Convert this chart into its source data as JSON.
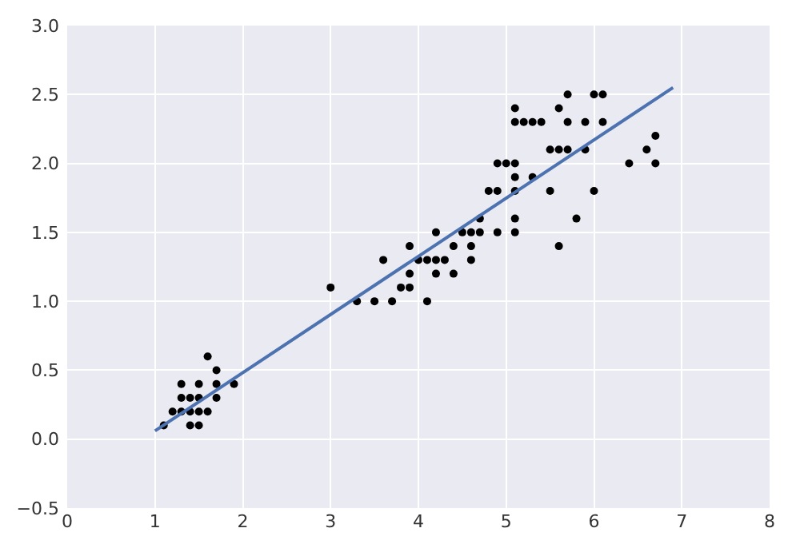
{
  "chart_data": {
    "type": "scatter",
    "xlim": [
      0,
      8
    ],
    "ylim": [
      -0.5,
      3.0
    ],
    "xticks": [
      0,
      1,
      2,
      3,
      4,
      5,
      6,
      7,
      8
    ],
    "yticks": [
      {
        "value": -0.5,
        "label": "−0.5"
      },
      {
        "value": 0,
        "label": "0.0"
      },
      {
        "value": 0.5,
        "label": "0.5"
      },
      {
        "value": 1,
        "label": "1.0"
      },
      {
        "value": 1.5,
        "label": "1.5"
      },
      {
        "value": 2,
        "label": "2.0"
      },
      {
        "value": 2.5,
        "label": "2.5"
      },
      {
        "value": 3,
        "label": "3.0"
      }
    ],
    "grid": true,
    "marker": "circle",
    "series": [
      {
        "color": "#000000",
        "x": [
          1.1,
          1.2,
          1.3,
          1.3,
          1.3,
          1.4,
          1.4,
          1.4,
          1.5,
          1.5,
          1.5,
          1.5,
          1.6,
          1.6,
          1.7,
          1.7,
          1.7,
          1.9,
          3.0,
          3.3,
          3.5,
          3.6,
          3.7,
          3.8,
          3.9,
          3.9,
          3.9,
          4.0,
          4.1,
          4.1,
          4.2,
          4.2,
          4.2,
          4.3,
          4.4,
          4.4,
          4.5,
          4.6,
          4.6,
          4.6,
          4.7,
          4.7,
          4.8,
          4.9,
          4.9,
          4.9,
          5.0,
          5.1,
          5.1,
          5.1,
          5.1,
          5.1,
          5.1,
          5.1,
          5.2,
          5.3,
          5.3,
          5.4,
          5.5,
          5.5,
          5.6,
          5.6,
          5.6,
          5.7,
          5.7,
          5.7,
          5.8,
          5.9,
          5.9,
          6.0,
          6.0,
          6.1,
          6.1,
          6.4,
          6.6,
          6.7,
          6.7
        ],
        "values": [
          0.1,
          0.2,
          0.2,
          0.3,
          0.4,
          0.1,
          0.2,
          0.3,
          0.1,
          0.2,
          0.3,
          0.4,
          0.2,
          0.6,
          0.3,
          0.4,
          0.5,
          0.4,
          1.1,
          1.0,
          1.0,
          1.3,
          1.0,
          1.1,
          1.1,
          1.2,
          1.4,
          1.3,
          1.3,
          1.0,
          1.2,
          1.3,
          1.5,
          1.3,
          1.2,
          1.4,
          1.5,
          1.3,
          1.4,
          1.5,
          1.5,
          1.6,
          1.8,
          1.5,
          1.8,
          2.0,
          2.0,
          1.5,
          1.6,
          1.8,
          1.9,
          2.0,
          2.3,
          2.4,
          2.3,
          1.9,
          2.3,
          2.3,
          1.8,
          2.1,
          1.4,
          2.1,
          2.4,
          2.1,
          2.3,
          2.5,
          1.6,
          2.1,
          2.3,
          1.8,
          2.5,
          2.3,
          2.5,
          2.0,
          2.1,
          2.0,
          2.2
        ]
      },
      {
        "type": "line",
        "color": "#4c72b0",
        "x": [
          1.0,
          6.9
        ],
        "values": [
          0.06,
          2.55
        ],
        "marker": "none",
        "line_style": "solid"
      }
    ]
  }
}
